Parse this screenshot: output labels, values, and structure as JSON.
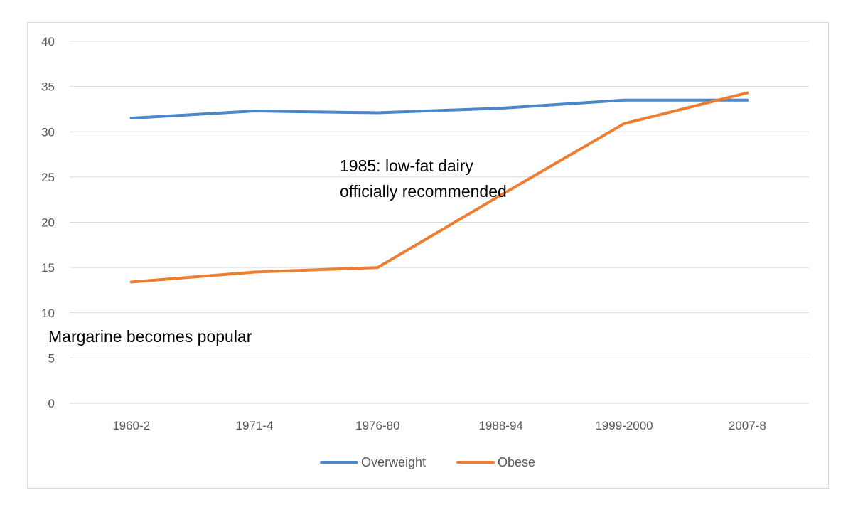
{
  "chart_data": {
    "type": "line",
    "categories": [
      "1960-2",
      "1971-4",
      "1976-80",
      "1988-94",
      "1999-2000",
      "2007-8"
    ],
    "series": [
      {
        "name": "Overweight",
        "values": [
          31.5,
          32.3,
          32.1,
          32.6,
          33.5,
          33.5
        ],
        "color": "#4a86c8"
      },
      {
        "name": "Obese",
        "values": [
          13.4,
          14.5,
          15.0,
          23.0,
          30.9,
          34.3
        ],
        "color": "#ed7d31"
      }
    ],
    "ylim": [
      0,
      40
    ],
    "yticks": [
      0,
      5,
      10,
      15,
      20,
      25,
      30,
      35,
      40
    ],
    "grid": true,
    "legend_position": "bottom",
    "annotations": [
      {
        "text": "1985: low-fat dairy officially recommended"
      },
      {
        "text": "Margarine becomes popular"
      }
    ],
    "annotation_lines": [
      [
        "1985: low-fat dairy",
        "officially recommended"
      ],
      [
        "Margarine becomes popular"
      ]
    ]
  }
}
